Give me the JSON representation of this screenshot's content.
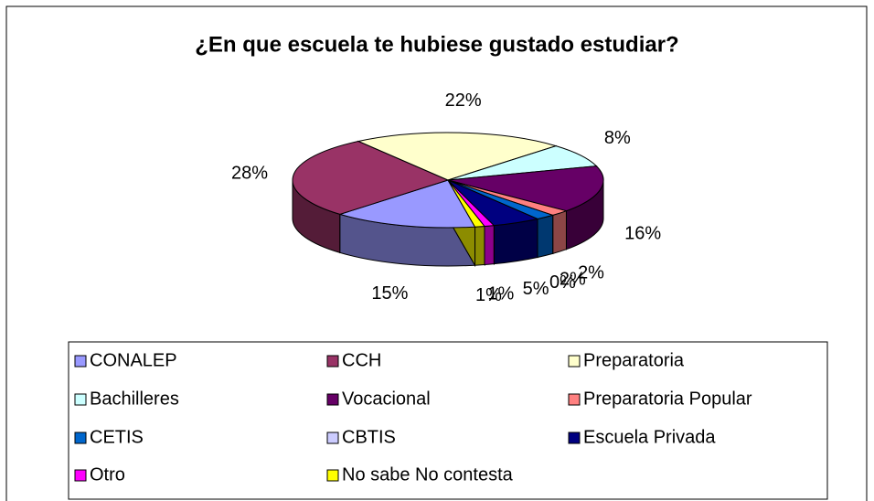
{
  "chart_data": {
    "type": "pie3d",
    "title": "¿En que escuela te hubiese gustado estudiar?",
    "categories": [
      "CONALEP",
      "CCH",
      "Preparatoria",
      "Bachilleres",
      "Vocacional",
      "Preparatoria Popular",
      "CETIS",
      "CBTIS",
      "Escuela Privada",
      "Otro",
      "No sabe No contesta"
    ],
    "values": [
      15,
      28,
      22,
      8,
      16,
      2,
      2,
      0,
      5,
      1,
      1
    ],
    "value_labels": [
      "15%",
      "28%",
      "22%",
      "8%",
      "16%",
      "2%",
      "2%",
      "0%",
      "5%",
      "1%",
      "1%"
    ],
    "colors": [
      "#9999ff",
      "#993366",
      "#ffffcc",
      "#ccffff",
      "#660066",
      "#ff8080",
      "#0066cc",
      "#ccccff",
      "#000080",
      "#ff00ff",
      "#ffff00"
    ],
    "legend": "bottom"
  }
}
